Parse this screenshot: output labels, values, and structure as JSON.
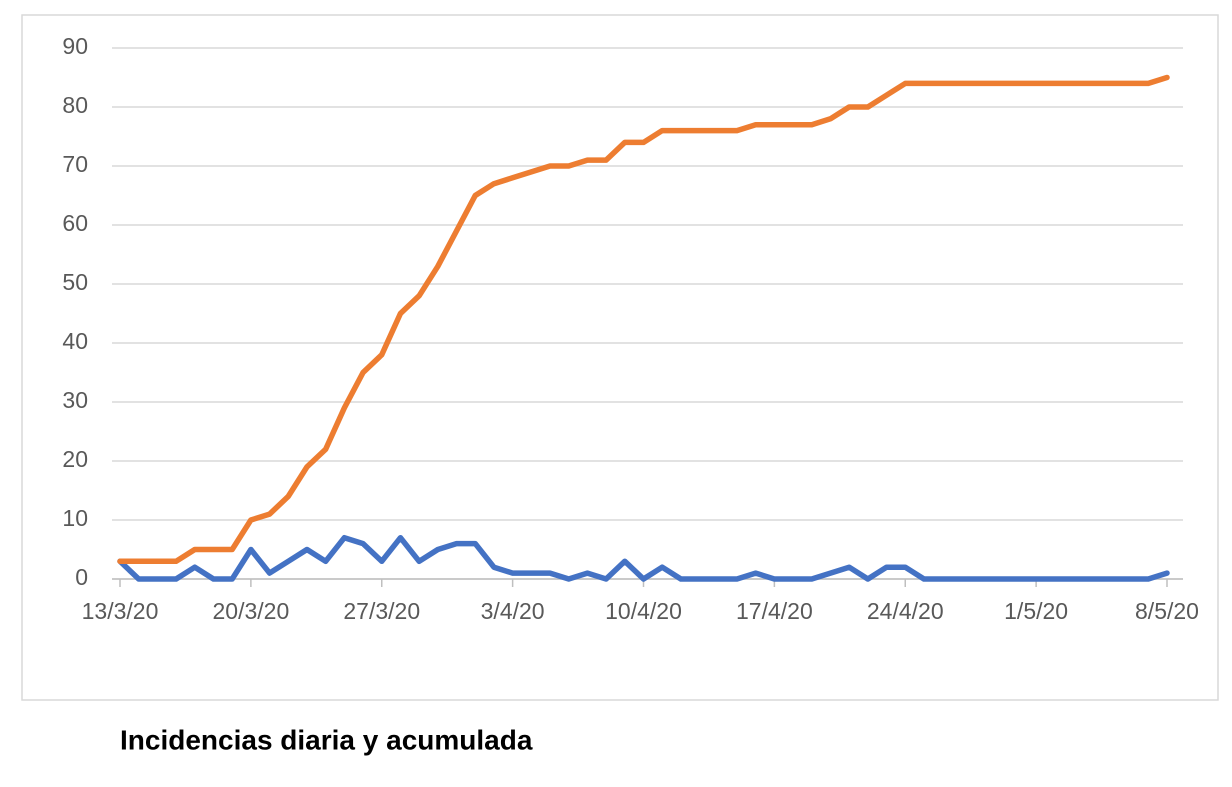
{
  "chart_data": {
    "type": "line",
    "title": "Incidencias diaria y acumulada",
    "categories": [
      "13/3/20",
      null,
      null,
      null,
      null,
      null,
      null,
      "20/3/20",
      null,
      null,
      null,
      null,
      null,
      null,
      "27/3/20",
      null,
      null,
      null,
      null,
      null,
      null,
      "3/4/20",
      null,
      null,
      null,
      null,
      null,
      null,
      "10/4/20",
      null,
      null,
      null,
      null,
      null,
      null,
      "17/4/20",
      null,
      null,
      null,
      null,
      null,
      null,
      "24/4/20",
      null,
      null,
      null,
      null,
      null,
      null,
      "1/5/20",
      null,
      null,
      null,
      null,
      null,
      null,
      "8/5/20"
    ],
    "series": [
      {
        "color": "#4472c4",
        "values": [
          3,
          0,
          0,
          0,
          2,
          0,
          0,
          5,
          1,
          3,
          5,
          3,
          7,
          6,
          3,
          7,
          3,
          5,
          6,
          6,
          2,
          1,
          1,
          1,
          0,
          1,
          0,
          3,
          0,
          2,
          0,
          0,
          0,
          0,
          1,
          0,
          0,
          0,
          1,
          2,
          0,
          2,
          2,
          0,
          0,
          0,
          0,
          0,
          0,
          0,
          0,
          0,
          0,
          0,
          0,
          0,
          1
        ]
      },
      {
        "color": "#ed7d31",
        "values": [
          3,
          3,
          3,
          3,
          5,
          5,
          5,
          10,
          11,
          14,
          19,
          22,
          29,
          35,
          38,
          45,
          48,
          53,
          59,
          65,
          67,
          68,
          69,
          70,
          70,
          71,
          71,
          74,
          74,
          76,
          76,
          76,
          76,
          76,
          77,
          77,
          77,
          77,
          78,
          80,
          80,
          82,
          84,
          84,
          84,
          84,
          84,
          84,
          84,
          84,
          84,
          84,
          84,
          84,
          84,
          84,
          85
        ]
      }
    ],
    "ylim": [
      0,
      90
    ],
    "yticks": [
      0,
      10,
      20,
      30,
      40,
      50,
      60,
      70,
      80,
      90
    ],
    "grid": true
  }
}
